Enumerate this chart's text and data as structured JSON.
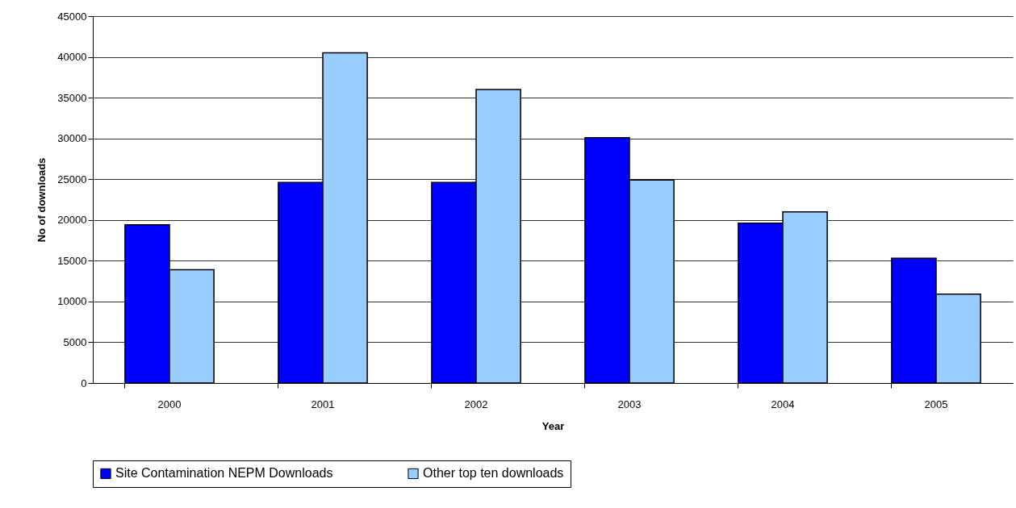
{
  "chart_data": {
    "type": "bar",
    "xlabel": "Year",
    "ylabel": "No of downloads",
    "categories": [
      "2000",
      "2001",
      "2002",
      "2003",
      "2004",
      "2005"
    ],
    "series": [
      {
        "name": "Site Contamination NEPM Downloads",
        "color": "#0000ff",
        "values": [
          19400,
          24600,
          24600,
          30100,
          19600,
          15300
        ]
      },
      {
        "name": "Other top ten downloads",
        "color": "#99ccff",
        "values": [
          13900,
          40500,
          36000,
          24900,
          21000,
          10900
        ]
      }
    ],
    "ylim": [
      0,
      45000
    ],
    "yticks": [
      0,
      5000,
      10000,
      15000,
      20000,
      25000,
      30000,
      35000,
      40000,
      45000
    ],
    "grid": "y",
    "legend": "bottom"
  }
}
